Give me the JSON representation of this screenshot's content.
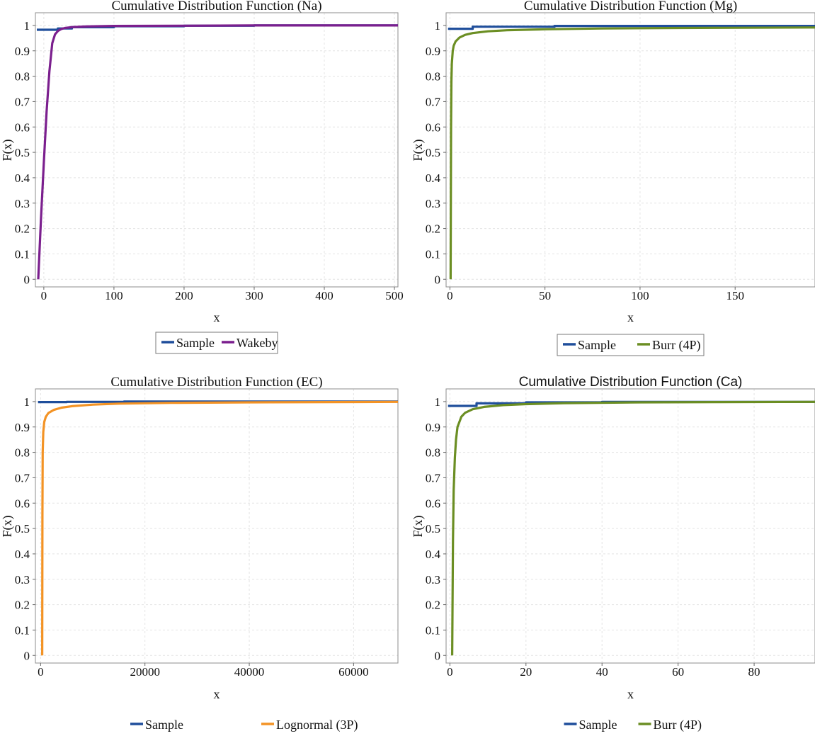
{
  "chart_data": [
    {
      "type": "line",
      "title": "Cumulative Distribution Function (Na)",
      "xlabel": "x",
      "ylabel": "F(x)",
      "xlim": [
        -12,
        505
      ],
      "ylim": [
        -0.03,
        1.05
      ],
      "xticks": [
        "0",
        "100",
        "200",
        "300",
        "400",
        "500"
      ],
      "xtick_values": [
        0,
        100,
        200,
        300,
        400,
        500
      ],
      "yticks": [
        "0",
        "0.1",
        "0.2",
        "0.3",
        "0.4",
        "0.5",
        "0.6",
        "0.7",
        "0.8",
        "0.9",
        "1"
      ],
      "grid": true,
      "legend_position": "bottom",
      "series": [
        {
          "name": "Sample",
          "color": "#1f4e9b",
          "step": true,
          "x": [
            -10,
            3,
            20,
            40,
            100,
            200,
            300,
            400,
            505
          ],
          "y": [
            0.983,
            0.983,
            0.988,
            0.993,
            0.997,
            0.999,
            1.0,
            1.0,
            1.0
          ]
        },
        {
          "name": "Wakeby",
          "color": "#7b1f8e",
          "step": false,
          "x": [
            -8,
            -4,
            0,
            4,
            8,
            12,
            16,
            20,
            25,
            30,
            40,
            60,
            100,
            200,
            300,
            505
          ],
          "y": [
            0.0,
            0.24,
            0.46,
            0.66,
            0.82,
            0.93,
            0.965,
            0.978,
            0.986,
            0.99,
            0.993,
            0.996,
            0.998,
            0.999,
            1.0,
            1.0
          ]
        }
      ]
    },
    {
      "type": "line",
      "title": "Cumulative Distribution Function (Mg)",
      "xlabel": "x",
      "ylabel": "F(x)",
      "xlim": [
        -2,
        192
      ],
      "ylim": [
        -0.03,
        1.05
      ],
      "xticks": [
        "0",
        "50",
        "100",
        "150"
      ],
      "xtick_values": [
        0,
        50,
        100,
        150
      ],
      "yticks": [
        "0",
        "0.1",
        "0.2",
        "0.3",
        "0.4",
        "0.5",
        "0.6",
        "0.7",
        "0.8",
        "0.9",
        "1"
      ],
      "grid": true,
      "legend_position": "bottom",
      "series": [
        {
          "name": "Sample",
          "color": "#1f4e9b",
          "step": true,
          "x": [
            -1,
            12,
            55,
            192
          ],
          "y": [
            0.987,
            0.995,
            0.998,
            0.998
          ]
        },
        {
          "name": "Burr (4P)",
          "color": "#6b8e23",
          "step": false,
          "x": [
            0.4,
            0.6,
            0.8,
            1,
            1.5,
            2,
            3,
            5,
            8,
            12,
            20,
            30,
            50,
            80,
            120,
            192
          ],
          "y": [
            0.0,
            0.6,
            0.78,
            0.85,
            0.9,
            0.92,
            0.937,
            0.952,
            0.963,
            0.97,
            0.977,
            0.981,
            0.985,
            0.988,
            0.99,
            0.992
          ]
        }
      ]
    },
    {
      "type": "line",
      "title": "Cumulative Distribution Function (EC)",
      "xlabel": "x",
      "ylabel": "F(x)",
      "xlim": [
        -1000,
        68500
      ],
      "ylim": [
        -0.03,
        1.05
      ],
      "xticks": [
        "0",
        "20000",
        "40000",
        "60000"
      ],
      "xtick_values": [
        0,
        20000,
        40000,
        60000
      ],
      "yticks": [
        "0",
        "0.1",
        "0.2",
        "0.3",
        "0.4",
        "0.5",
        "0.6",
        "0.7",
        "0.8",
        "0.9",
        "1"
      ],
      "grid": true,
      "legend_position": "bottom",
      "series": [
        {
          "name": "Sample",
          "color": "#1f4e9b",
          "step": true,
          "x": [
            -500,
            5000,
            16000,
            68500
          ],
          "y": [
            0.998,
            0.999,
            1.0,
            1.0
          ]
        },
        {
          "name": "Lognormal (3P)",
          "color": "#f39325",
          "step": false,
          "x": [
            300,
            350,
            400,
            500,
            700,
            1000,
            1500,
            2500,
            4000,
            6000,
            10000,
            15000,
            25000,
            40000,
            68500
          ],
          "y": [
            0.0,
            0.55,
            0.8,
            0.88,
            0.92,
            0.94,
            0.955,
            0.967,
            0.976,
            0.982,
            0.988,
            0.992,
            0.995,
            0.997,
            0.999
          ]
        }
      ]
    },
    {
      "type": "line",
      "title": "Cumulative Distribution Function (Ca)",
      "xlabel": "x",
      "ylabel": "F(x)",
      "xlim": [
        -1,
        96
      ],
      "ylim": [
        -0.03,
        1.05
      ],
      "xticks": [
        "0",
        "20",
        "40",
        "60",
        "80"
      ],
      "xtick_values": [
        0,
        20,
        40,
        60,
        80
      ],
      "yticks": [
        "0",
        "0.1",
        "0.2",
        "0.3",
        "0.4",
        "0.5",
        "0.6",
        "0.7",
        "0.8",
        "0.9",
        "1"
      ],
      "grid": true,
      "legend_position": "bottom",
      "series": [
        {
          "name": "Sample",
          "color": "#1f4e9b",
          "step": true,
          "x": [
            -0.5,
            7,
            20,
            40,
            96
          ],
          "y": [
            0.983,
            0.993,
            0.997,
            0.999,
            1.0
          ]
        },
        {
          "name": "Burr (4P)",
          "color": "#6b8e23",
          "step": false,
          "x": [
            0.6,
            0.8,
            1,
            1.3,
            1.6,
            2,
            3,
            4,
            6,
            9,
            14,
            20,
            30,
            50,
            70,
            96
          ],
          "y": [
            0.0,
            0.45,
            0.65,
            0.78,
            0.85,
            0.9,
            0.94,
            0.956,
            0.97,
            0.979,
            0.986,
            0.99,
            0.994,
            0.997,
            0.998,
            0.999
          ]
        }
      ]
    }
  ]
}
